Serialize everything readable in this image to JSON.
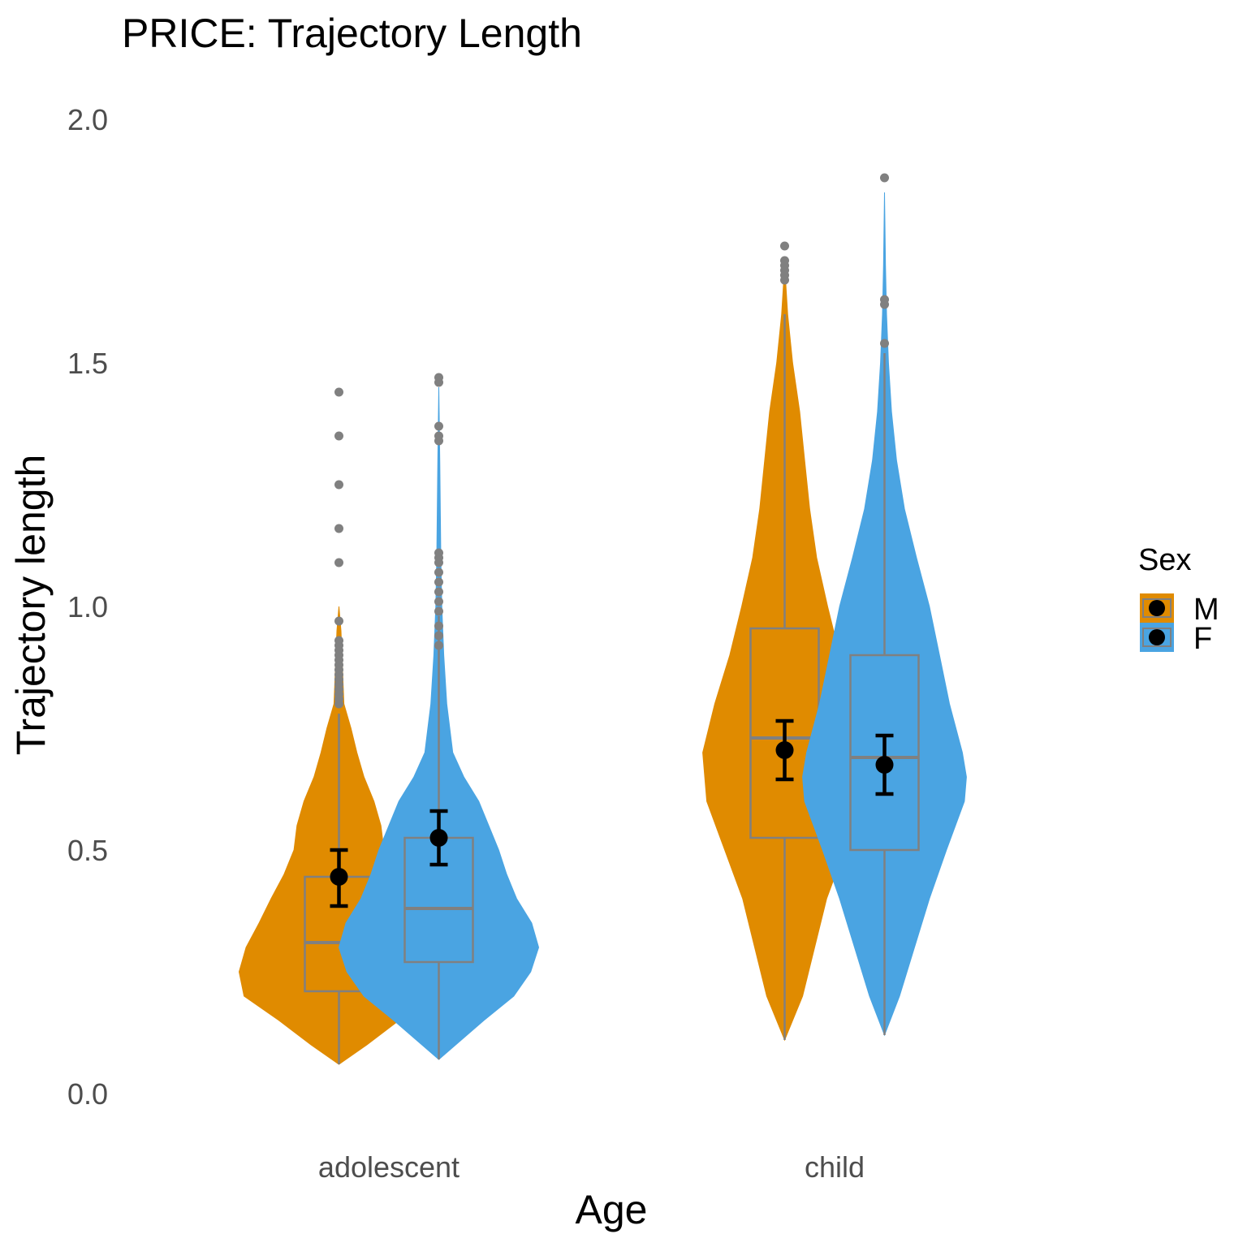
{
  "chart_data": {
    "type": "violin",
    "title": "PRICE: Trajectory Length",
    "xlabel": "Age",
    "ylabel": "Trajectory length",
    "ylim": [
      0,
      2.0
    ],
    "yticks": [
      "0.0",
      "0.5",
      "1.0",
      "1.5",
      "2.0"
    ],
    "categories": [
      "adolescent",
      "child"
    ],
    "legend": {
      "title": "Sex",
      "position": "right"
    },
    "series": [
      {
        "name": "M",
        "color": "#E08B00",
        "groups": [
          {
            "category": "adolescent",
            "min": 0.06,
            "max": 1.0,
            "profile": [
              [
                0.06,
                0.0
              ],
              [
                0.1,
                0.28
              ],
              [
                0.15,
                0.6
              ],
              [
                0.2,
                0.95
              ],
              [
                0.25,
                1.0
              ],
              [
                0.3,
                0.93
              ],
              [
                0.35,
                0.8
              ],
              [
                0.4,
                0.68
              ],
              [
                0.45,
                0.55
              ],
              [
                0.5,
                0.45
              ],
              [
                0.55,
                0.42
              ],
              [
                0.6,
                0.35
              ],
              [
                0.65,
                0.25
              ],
              [
                0.7,
                0.18
              ],
              [
                0.75,
                0.12
              ],
              [
                0.8,
                0.05
              ],
              [
                0.85,
                0.04
              ],
              [
                0.9,
                0.03
              ],
              [
                0.95,
                0.02
              ],
              [
                1.0,
                0.0
              ]
            ],
            "box": {
              "q1": 0.21,
              "median": 0.31,
              "q3": 0.445,
              "whisker_low": 0.06,
              "whisker_high": 0.78
            },
            "outliers": [
              0.8,
              0.81,
              0.82,
              0.83,
              0.84,
              0.85,
              0.86,
              0.87,
              0.88,
              0.89,
              0.9,
              0.91,
              0.92,
              0.93,
              0.97,
              1.09,
              1.16,
              1.25,
              1.35,
              1.44
            ],
            "mean": 0.445,
            "ci": [
              0.385,
              0.5
            ]
          },
          {
            "category": "child",
            "min": 0.11,
            "max": 1.7,
            "profile": [
              [
                0.11,
                0.0
              ],
              [
                0.2,
                0.18
              ],
              [
                0.3,
                0.3
              ],
              [
                0.4,
                0.42
              ],
              [
                0.5,
                0.6
              ],
              [
                0.6,
                0.78
              ],
              [
                0.7,
                0.82
              ],
              [
                0.8,
                0.7
              ],
              [
                0.9,
                0.55
              ],
              [
                1.0,
                0.43
              ],
              [
                1.1,
                0.32
              ],
              [
                1.2,
                0.25
              ],
              [
                1.3,
                0.2
              ],
              [
                1.4,
                0.15
              ],
              [
                1.5,
                0.08
              ],
              [
                1.6,
                0.03
              ],
              [
                1.7,
                0.0
              ]
            ],
            "box": {
              "q1": 0.525,
              "median": 0.73,
              "q3": 0.955,
              "whisker_low": 0.11,
              "whisker_high": 1.6
            },
            "outliers": [
              1.67,
              1.68,
              1.69,
              1.7,
              1.71,
              1.74
            ],
            "mean": 0.705,
            "ci": [
              0.645,
              0.765
            ]
          }
        ]
      },
      {
        "name": "F",
        "color": "#4AA4E2",
        "groups": [
          {
            "category": "adolescent",
            "min": 0.07,
            "max": 1.45,
            "profile": [
              [
                0.07,
                0.0
              ],
              [
                0.15,
                0.45
              ],
              [
                0.2,
                0.75
              ],
              [
                0.25,
                0.92
              ],
              [
                0.3,
                1.0
              ],
              [
                0.35,
                0.93
              ],
              [
                0.4,
                0.78
              ],
              [
                0.45,
                0.68
              ],
              [
                0.5,
                0.6
              ],
              [
                0.55,
                0.5
              ],
              [
                0.6,
                0.4
              ],
              [
                0.65,
                0.25
              ],
              [
                0.7,
                0.14
              ],
              [
                0.8,
                0.08
              ],
              [
                0.9,
                0.05
              ],
              [
                1.0,
                0.03
              ],
              [
                1.1,
                0.02
              ],
              [
                1.3,
                0.01
              ],
              [
                1.45,
                0.0
              ]
            ],
            "box": {
              "q1": 0.27,
              "median": 0.38,
              "q3": 0.525,
              "whisker_low": 0.07,
              "whisker_high": 0.98
            },
            "outliers": [
              0.92,
              0.94,
              0.96,
              0.99,
              1.01,
              1.03,
              1.05,
              1.07,
              1.09,
              1.1,
              1.11,
              1.34,
              1.35,
              1.37,
              1.46,
              1.47
            ],
            "mean": 0.525,
            "ci": [
              0.47,
              0.58
            ]
          },
          {
            "category": "child",
            "min": 0.12,
            "max": 1.85,
            "profile": [
              [
                0.12,
                0.0
              ],
              [
                0.2,
                0.15
              ],
              [
                0.3,
                0.3
              ],
              [
                0.4,
                0.45
              ],
              [
                0.5,
                0.62
              ],
              [
                0.6,
                0.8
              ],
              [
                0.65,
                0.82
              ],
              [
                0.7,
                0.78
              ],
              [
                0.8,
                0.65
              ],
              [
                0.9,
                0.55
              ],
              [
                1.0,
                0.45
              ],
              [
                1.1,
                0.32
              ],
              [
                1.2,
                0.2
              ],
              [
                1.3,
                0.12
              ],
              [
                1.4,
                0.07
              ],
              [
                1.5,
                0.04
              ],
              [
                1.6,
                0.02
              ],
              [
                1.7,
                0.01
              ],
              [
                1.85,
                0.0
              ]
            ],
            "box": {
              "q1": 0.5,
              "median": 0.69,
              "q3": 0.9,
              "whisker_low": 0.12,
              "whisker_high": 1.52
            },
            "outliers": [
              1.54,
              1.62,
              1.63,
              1.88
            ],
            "mean": 0.675,
            "ci": [
              0.615,
              0.735
            ]
          }
        ]
      }
    ],
    "grid": false
  }
}
